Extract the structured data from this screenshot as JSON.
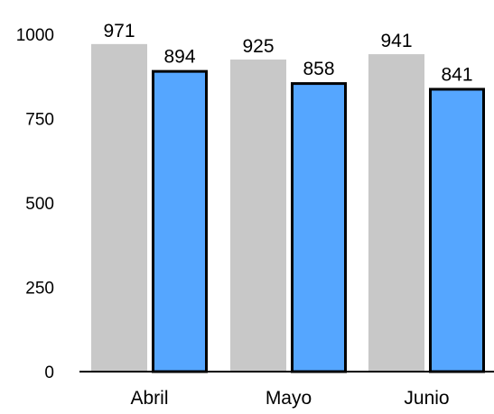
{
  "chart_data": {
    "type": "bar",
    "categories": [
      "Abril",
      "Mayo",
      "Junio"
    ],
    "series": [
      {
        "values": [
          971,
          925,
          941
        ],
        "color": "#c8c8c8",
        "outlined": false
      },
      {
        "values": [
          894,
          858,
          841
        ],
        "color": "#55a6ff",
        "outlined": true,
        "outline_color": "#000000"
      }
    ],
    "ylim": [
      0,
      1000
    ],
    "yticks": [
      0,
      250,
      500,
      750,
      1000
    ],
    "ytick_labels": [
      "0",
      "250",
      "500",
      "750",
      "1000"
    ],
    "grid": false,
    "title": "",
    "xlabel": "",
    "ylabel": ""
  }
}
